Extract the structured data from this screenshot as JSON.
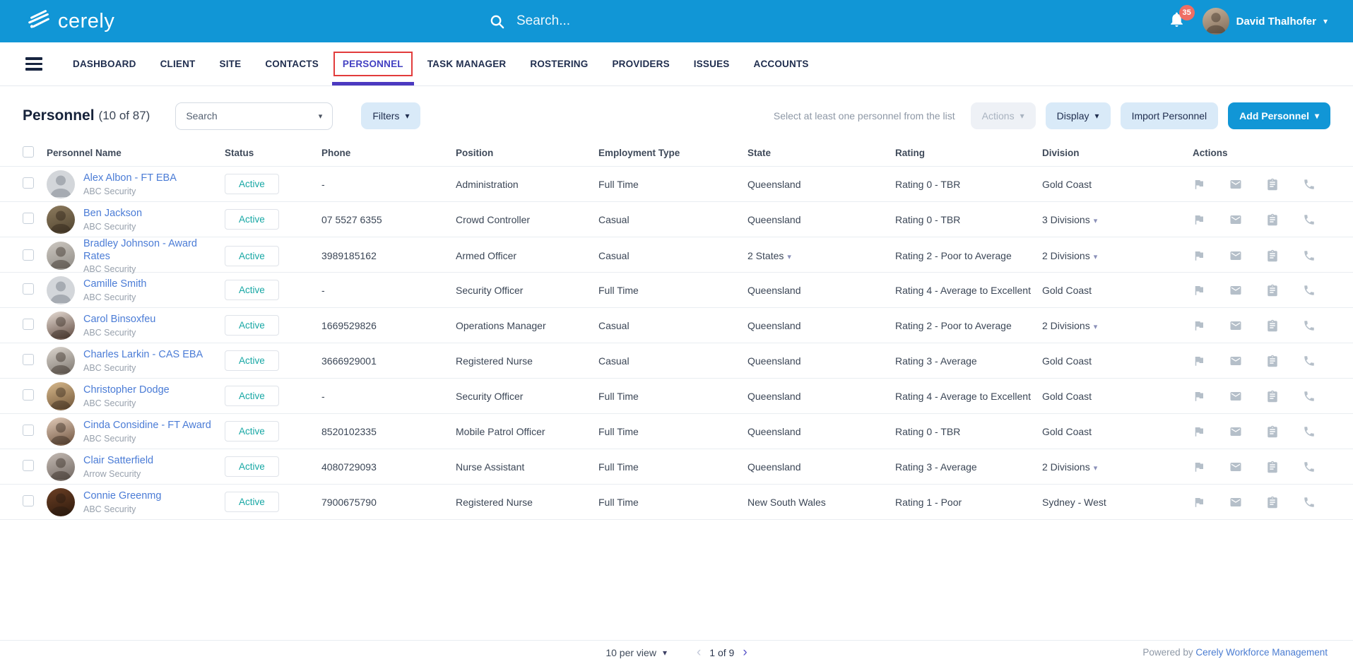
{
  "topbar": {
    "brand": "cerely",
    "search_placeholder": "Search...",
    "notification_count": "35",
    "user_name": "David Thalhofer"
  },
  "nav": {
    "active": "PERSONNEL",
    "items": [
      {
        "label": "DASHBOARD"
      },
      {
        "label": "CLIENT"
      },
      {
        "label": "SITE"
      },
      {
        "label": "CONTACTS"
      },
      {
        "label": "PERSONNEL"
      },
      {
        "label": "TASK MANAGER"
      },
      {
        "label": "ROSTERING"
      },
      {
        "label": "PROVIDERS"
      },
      {
        "label": "ISSUES"
      },
      {
        "label": "ACCOUNTS"
      }
    ]
  },
  "header": {
    "title": "Personnel",
    "count": "(10 of 87)",
    "search_label": "Search",
    "filters_label": "Filters",
    "hint": "Select at least one personnel from the list",
    "actions_label": "Actions",
    "display_label": "Display",
    "import_label": "Import Personnel",
    "add_label": "Add Personnel"
  },
  "table": {
    "columns": [
      "Personnel Name",
      "Status",
      "Phone",
      "Position",
      "Employment Type",
      "State",
      "Rating",
      "Division",
      "Actions"
    ],
    "rows": [
      {
        "name": "Alex Albon - FT EBA",
        "company": "ABC Security",
        "status": "Active",
        "phone": "-",
        "position": "Administration",
        "employment_type": "Full Time",
        "state": "Queensland",
        "state_dropdown": false,
        "rating": "Rating 0 - TBR",
        "division": "Gold Coast",
        "division_dropdown": false,
        "avatar": {
          "type": "placeholder",
          "c1": "#d3d6da",
          "c2": "#d3d6da"
        }
      },
      {
        "name": "Ben Jackson",
        "company": "ABC Security",
        "status": "Active",
        "phone": "07 5527 6355",
        "position": "Crowd Controller",
        "employment_type": "Casual",
        "state": "Queensland",
        "state_dropdown": false,
        "rating": "Rating 0 - TBR",
        "division": "3 Divisions",
        "division_dropdown": true,
        "avatar": {
          "type": "photo",
          "c1": "#8d7b5e",
          "c2": "#4f432f"
        }
      },
      {
        "name": "Bradley Johnson - Award Rates",
        "company": "ABC Security",
        "status": "Active",
        "phone": "3989185162",
        "position": "Armed Officer",
        "employment_type": "Casual",
        "state": "2 States",
        "state_dropdown": true,
        "rating": "Rating 2 - Poor to Average",
        "division": "2 Divisions",
        "division_dropdown": true,
        "avatar": {
          "type": "photo",
          "c1": "#cdc8c1",
          "c2": "#8e8a84"
        }
      },
      {
        "name": "Camille Smith",
        "company": "ABC Security",
        "status": "Active",
        "phone": "-",
        "position": "Security Officer",
        "employment_type": "Full Time",
        "state": "Queensland",
        "state_dropdown": false,
        "rating": "Rating 4 - Average to Excellent",
        "division": "Gold Coast",
        "division_dropdown": false,
        "avatar": {
          "type": "placeholder",
          "c1": "#d3d6da",
          "c2": "#d3d6da"
        }
      },
      {
        "name": "Carol Binsoxfeu",
        "company": "ABC Security",
        "status": "Active",
        "phone": "1669529826",
        "position": "Operations Manager",
        "employment_type": "Casual",
        "state": "Queensland",
        "state_dropdown": false,
        "rating": "Rating 2 - Poor to Average",
        "division": "2 Divisions",
        "division_dropdown": true,
        "avatar": {
          "type": "photo",
          "c1": "#e8ded6",
          "c2": "#5a443a"
        }
      },
      {
        "name": "Charles Larkin - CAS EBA",
        "company": "ABC Security",
        "status": "Active",
        "phone": "3666929001",
        "position": "Registered Nurse",
        "employment_type": "Casual",
        "state": "Queensland",
        "state_dropdown": false,
        "rating": "Rating 3 - Average",
        "division": "Gold Coast",
        "division_dropdown": false,
        "avatar": {
          "type": "photo",
          "c1": "#dcd6cf",
          "c2": "#7a746c"
        }
      },
      {
        "name": "Christopher Dodge",
        "company": "ABC Security",
        "status": "Active",
        "phone": "-",
        "position": "Security Officer",
        "employment_type": "Full Time",
        "state": "Queensland",
        "state_dropdown": false,
        "rating": "Rating 4 - Average to Excellent",
        "division": "Gold Coast",
        "division_dropdown": false,
        "avatar": {
          "type": "photo",
          "c1": "#d8b98c",
          "c2": "#6e5336"
        }
      },
      {
        "name": "Cinda Considine - FT Award",
        "company": "ABC Security",
        "status": "Active",
        "phone": "8520102335",
        "position": "Mobile Patrol Officer",
        "employment_type": "Full Time",
        "state": "Queensland",
        "state_dropdown": false,
        "rating": "Rating 0 - TBR",
        "division": "Gold Coast",
        "division_dropdown": false,
        "avatar": {
          "type": "photo",
          "c1": "#e3cdbb",
          "c2": "#6b4f3a"
        }
      },
      {
        "name": "Clair Satterfield",
        "company": "Arrow Security",
        "status": "Active",
        "phone": "4080729093",
        "position": "Nurse Assistant",
        "employment_type": "Full Time",
        "state": "Queensland",
        "state_dropdown": false,
        "rating": "Rating 3 - Average",
        "division": "2 Divisions",
        "division_dropdown": true,
        "avatar": {
          "type": "photo",
          "c1": "#c4bab3",
          "c2": "#6f6660"
        }
      },
      {
        "name": "Connie Greenmg",
        "company": "ABC Security",
        "status": "Active",
        "phone": "7900675790",
        "position": "Registered Nurse",
        "employment_type": "Full Time",
        "state": "New South Wales",
        "state_dropdown": false,
        "rating": "Rating 1 - Poor",
        "division": "Sydney - West",
        "division_dropdown": false,
        "avatar": {
          "type": "photo",
          "c1": "#6b3f24",
          "c2": "#2e1a0d"
        }
      }
    ]
  },
  "footer": {
    "per_view": "10 per view",
    "page_label": "1 of 9",
    "powered_by": "Powered by",
    "powered_link": "Cerely Workforce Management"
  },
  "colors": {
    "topbar_blue": "#1196d6",
    "active_tab_purple": "#4b39c0",
    "highlight_red": "#e23c3c",
    "notification_red": "#ef6e64",
    "status_active_teal": "#17a7a4",
    "link_blue": "#4b7cd6",
    "light_button_bg": "#d9eaf8"
  }
}
